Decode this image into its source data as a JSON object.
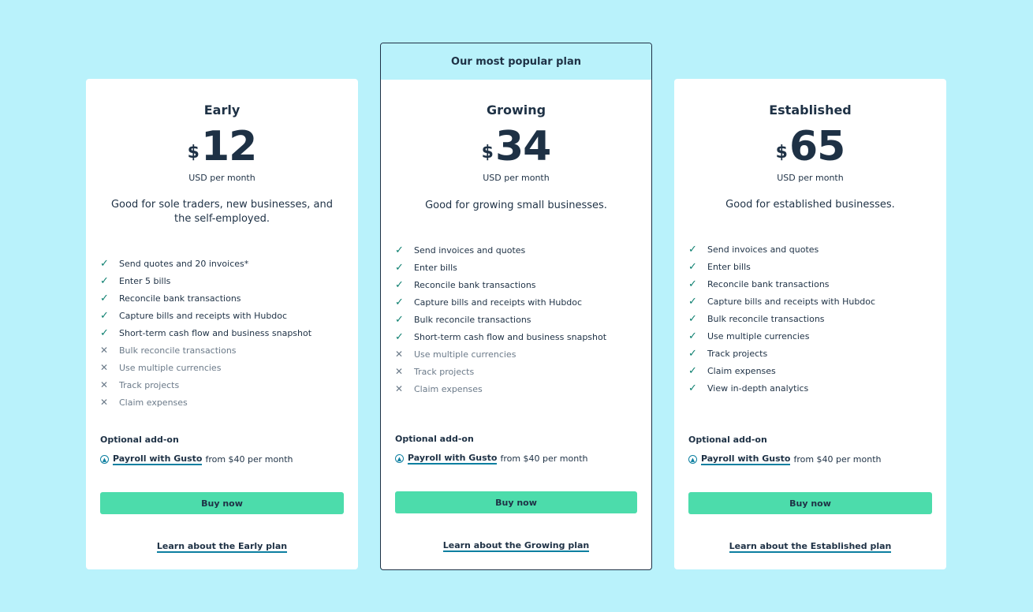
{
  "plans": [
    {
      "name": "Early",
      "currency": "$",
      "amount": "12",
      "period": "USD per month",
      "description": "Good for sole traders, new businesses, and the self-employed.",
      "features": [
        {
          "text": "Send quotes and 20 invoices*",
          "included": true
        },
        {
          "text": "Enter 5 bills",
          "included": true
        },
        {
          "text": "Reconcile bank transactions",
          "included": true
        },
        {
          "text": "Capture bills and receipts with Hubdoc",
          "included": true
        },
        {
          "text": "Short-term cash flow and business snapshot",
          "included": true
        },
        {
          "text": "Bulk reconcile transactions",
          "included": false
        },
        {
          "text": "Use multiple currencies",
          "included": false
        },
        {
          "text": "Track projects",
          "included": false
        },
        {
          "text": "Claim expenses",
          "included": false
        }
      ],
      "addon_heading": "Optional add-on",
      "addon_link": "Payroll with Gusto",
      "addon_suffix": "from $40 per month",
      "buy_label": "Buy now",
      "learn_label": "Learn about the Early plan"
    },
    {
      "banner": "Our most popular plan",
      "name": "Growing",
      "currency": "$",
      "amount": "34",
      "period": "USD per month",
      "description": "Good for growing small businesses.",
      "features": [
        {
          "text": "Send invoices and quotes",
          "included": true
        },
        {
          "text": "Enter bills",
          "included": true
        },
        {
          "text": "Reconcile bank transactions",
          "included": true
        },
        {
          "text": "Capture bills and receipts with Hubdoc",
          "included": true
        },
        {
          "text": "Bulk reconcile transactions",
          "included": true
        },
        {
          "text": "Short-term cash flow and business snapshot",
          "included": true
        },
        {
          "text": "Use multiple currencies",
          "included": false
        },
        {
          "text": "Track projects",
          "included": false
        },
        {
          "text": "Claim expenses",
          "included": false
        }
      ],
      "addon_heading": "Optional add-on",
      "addon_link": "Payroll with Gusto",
      "addon_suffix": "from $40 per month",
      "buy_label": "Buy now",
      "learn_label": "Learn about the Growing plan"
    },
    {
      "name": "Established",
      "currency": "$",
      "amount": "65",
      "period": "USD per month",
      "description": "Good for established businesses.",
      "features": [
        {
          "text": "Send invoices and quotes",
          "included": true
        },
        {
          "text": "Enter bills",
          "included": true
        },
        {
          "text": "Reconcile bank transactions",
          "included": true
        },
        {
          "text": "Capture bills and receipts with Hubdoc",
          "included": true
        },
        {
          "text": "Bulk reconcile transactions",
          "included": true
        },
        {
          "text": "Use multiple currencies",
          "included": true
        },
        {
          "text": "Track projects",
          "included": true
        },
        {
          "text": "Claim expenses",
          "included": true
        },
        {
          "text": "View in-depth analytics",
          "included": true
        }
      ],
      "addon_heading": "Optional add-on",
      "addon_link": "Payroll with Gusto",
      "addon_suffix": "from $40 per month",
      "buy_label": "Buy now",
      "learn_label": "Learn about the Established plan"
    }
  ],
  "icons": {
    "included": "check-icon",
    "excluded": "cross-icon",
    "addon": "chevron-up-circle-icon"
  },
  "colors": {
    "background": "#b9f2fb",
    "button": "#4cdcab",
    "text": "#1e3145",
    "link_underline": "#0c7fa0"
  }
}
